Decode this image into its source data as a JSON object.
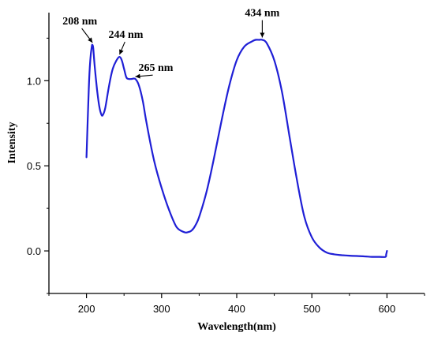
{
  "chart_data": {
    "type": "line",
    "xlabel": "Wavelength(nm)",
    "ylabel": "Intensity",
    "xlim": [
      150,
      650
    ],
    "ylim": [
      -0.25,
      1.4
    ],
    "x_ticks": [
      200,
      300,
      400,
      500,
      600
    ],
    "x_tick_labels": [
      "200",
      "300",
      "400",
      "500",
      "600"
    ],
    "y_ticks": [
      0.0,
      0.5,
      1.0
    ],
    "y_tick_labels": [
      "0.0",
      "0.5",
      "1.0"
    ],
    "grid": false,
    "series": [
      {
        "color": "#1f1fd6",
        "x": [
          200,
          203,
          205,
          207,
          208,
          209,
          211,
          214,
          217,
          220,
          222,
          225,
          230,
          235,
          240,
          244,
          247,
          250,
          253,
          256,
          260,
          265,
          270,
          275,
          280,
          290,
          300,
          310,
          320,
          330,
          335,
          340,
          345,
          350,
          360,
          370,
          380,
          390,
          400,
          410,
          420,
          425,
          430,
          434,
          440,
          450,
          460,
          470,
          480,
          490,
          500,
          510,
          520,
          530,
          540,
          550,
          560,
          570,
          580,
          590,
          598,
          599,
          600
        ],
        "y": [
          0.55,
          0.95,
          1.12,
          1.2,
          1.21,
          1.19,
          1.08,
          0.95,
          0.85,
          0.8,
          0.8,
          0.84,
          0.97,
          1.07,
          1.12,
          1.14,
          1.12,
          1.07,
          1.02,
          1.01,
          1.01,
          1.01,
          0.97,
          0.88,
          0.75,
          0.53,
          0.37,
          0.24,
          0.14,
          0.11,
          0.11,
          0.12,
          0.15,
          0.2,
          0.35,
          0.55,
          0.77,
          0.97,
          1.12,
          1.2,
          1.23,
          1.24,
          1.24,
          1.24,
          1.22,
          1.12,
          0.94,
          0.68,
          0.42,
          0.2,
          0.08,
          0.02,
          -0.01,
          -0.02,
          -0.025,
          -0.028,
          -0.03,
          -0.032,
          -0.035,
          -0.035,
          -0.035,
          -0.02,
          0.0
        ]
      }
    ],
    "annotations": [
      {
        "text": "208 nm",
        "x": 208,
        "y": 1.21
      },
      {
        "text": "244 nm",
        "x": 244,
        "y": 1.14
      },
      {
        "text": "265 nm",
        "x": 265,
        "y": 1.01
      },
      {
        "text": "434 nm",
        "x": 434,
        "y": 1.24
      }
    ]
  }
}
